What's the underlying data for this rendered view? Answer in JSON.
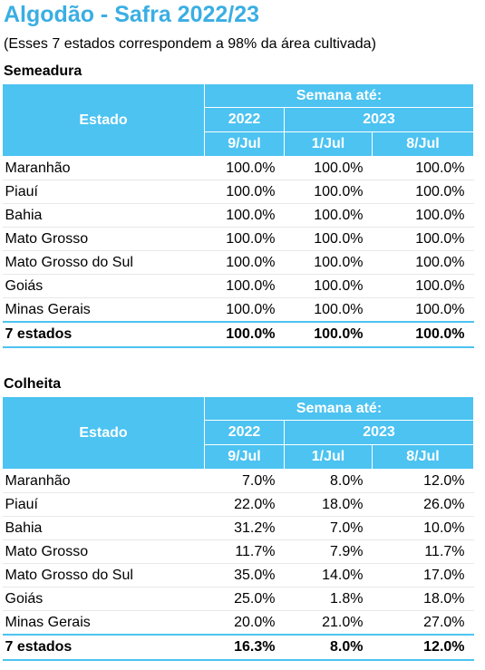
{
  "header": {
    "title": "Algodão - Safra 2022/23",
    "subtitle": "(Esses 7 estados correspondem a 98% da área cultivada)"
  },
  "tables": [
    {
      "title": "Semeadura",
      "state_header": "Estado",
      "week_header": "Semana até:",
      "years": [
        "2022",
        "2023"
      ],
      "weeks": [
        "9/Jul",
        "1/Jul",
        "8/Jul"
      ],
      "rows": [
        [
          "Maranhão",
          "100.0%",
          "100.0%",
          "100.0%"
        ],
        [
          "Piauí",
          "100.0%",
          "100.0%",
          "100.0%"
        ],
        [
          "Bahia",
          "100.0%",
          "100.0%",
          "100.0%"
        ],
        [
          "Mato Grosso",
          "100.0%",
          "100.0%",
          "100.0%"
        ],
        [
          "Mato Grosso do Sul",
          "100.0%",
          "100.0%",
          "100.0%"
        ],
        [
          "Goiás",
          "100.0%",
          "100.0%",
          "100.0%"
        ],
        [
          "Minas Gerais",
          "100.0%",
          "100.0%",
          "100.0%"
        ]
      ],
      "total": [
        "7 estados",
        "100.0%",
        "100.0%",
        "100.0%"
      ]
    },
    {
      "title": "Colheita",
      "state_header": "Estado",
      "week_header": "Semana até:",
      "years": [
        "2022",
        "2023"
      ],
      "weeks": [
        "9/Jul",
        "1/Jul",
        "8/Jul"
      ],
      "rows": [
        [
          "Maranhão",
          "7.0%",
          "8.0%",
          "12.0%"
        ],
        [
          "Piauí",
          "22.0%",
          "18.0%",
          "26.0%"
        ],
        [
          "Bahia",
          "31.2%",
          "7.0%",
          "10.0%"
        ],
        [
          "Mato Grosso",
          "11.7%",
          "7.9%",
          "11.7%"
        ],
        [
          "Mato Grosso do Sul",
          "35.0%",
          "14.0%",
          "17.0%"
        ],
        [
          "Goiás",
          "25.0%",
          "1.8%",
          "18.0%"
        ],
        [
          "Minas Gerais",
          "20.0%",
          "21.0%",
          "27.0%"
        ]
      ],
      "total": [
        "7 estados",
        "16.3%",
        "8.0%",
        "12.0%"
      ]
    }
  ]
}
